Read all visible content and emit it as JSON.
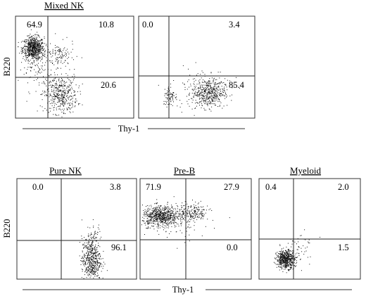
{
  "chart_data": [
    {
      "type": "scatter",
      "title": "Mixed NK",
      "xlabel": "Thy-1",
      "ylabel": "B220",
      "quadrants": {
        "upper_left": "64.9",
        "upper_right": "10.8",
        "lower_left": "",
        "lower_right": "20.6"
      },
      "populations": [
        {
          "cx": 0.15,
          "cy": 0.69,
          "sx": 0.045,
          "sy": 0.055,
          "n": 700
        },
        {
          "cx": 0.38,
          "cy": 0.23,
          "sx": 0.07,
          "sy": 0.09,
          "n": 420
        },
        {
          "cx": 0.22,
          "cy": 0.52,
          "sx": 0.1,
          "sy": 0.12,
          "n": 150
        },
        {
          "cx": 0.38,
          "cy": 0.62,
          "sx": 0.06,
          "sy": 0.06,
          "n": 90
        }
      ]
    },
    {
      "type": "scatter",
      "title": "",
      "xlabel": "Thy-1",
      "ylabel": "",
      "quadrants": {
        "upper_left": "0.0",
        "upper_right": "3.4",
        "lower_left": "",
        "lower_right": "85.4"
      },
      "populations": [
        {
          "cx": 0.6,
          "cy": 0.25,
          "sx": 0.07,
          "sy": 0.07,
          "n": 420
        },
        {
          "cx": 0.27,
          "cy": 0.22,
          "sx": 0.03,
          "sy": 0.05,
          "n": 80
        },
        {
          "cx": 0.55,
          "cy": 0.3,
          "sx": 0.12,
          "sy": 0.1,
          "n": 120
        }
      ]
    },
    {
      "type": "scatter",
      "title": "Pure NK",
      "xlabel": "",
      "ylabel": "B220",
      "quadrants": {
        "upper_left": "0.0",
        "upper_right": "3.8",
        "lower_left": "",
        "lower_right": "96.1"
      },
      "populations": [
        {
          "cx": 0.62,
          "cy": 0.2,
          "sx": 0.04,
          "sy": 0.11,
          "n": 520
        },
        {
          "cx": 0.65,
          "cy": 0.45,
          "sx": 0.03,
          "sy": 0.05,
          "n": 30
        }
      ]
    },
    {
      "type": "scatter",
      "title": "Pre-B",
      "xlabel": "Thy-1",
      "ylabel": "",
      "quadrants": {
        "upper_left": "71.9",
        "upper_right": "27.9",
        "lower_left": "",
        "lower_right": "0.0"
      },
      "populations": [
        {
          "cx": 0.18,
          "cy": 0.63,
          "sx": 0.08,
          "sy": 0.05,
          "n": 650
        },
        {
          "cx": 0.46,
          "cy": 0.66,
          "sx": 0.08,
          "sy": 0.05,
          "n": 220
        },
        {
          "cx": 0.28,
          "cy": 0.55,
          "sx": 0.12,
          "sy": 0.1,
          "n": 80
        }
      ]
    },
    {
      "type": "scatter",
      "title": "Myeloid",
      "xlabel": "",
      "ylabel": "",
      "quadrants": {
        "upper_left": "0.4",
        "upper_right": "2.0",
        "lower_left": "",
        "lower_right": "1.5"
      },
      "populations": [
        {
          "cx": 0.26,
          "cy": 0.2,
          "sx": 0.045,
          "sy": 0.045,
          "n": 560
        },
        {
          "cx": 0.38,
          "cy": 0.3,
          "sx": 0.09,
          "sy": 0.09,
          "n": 60
        }
      ]
    }
  ]
}
